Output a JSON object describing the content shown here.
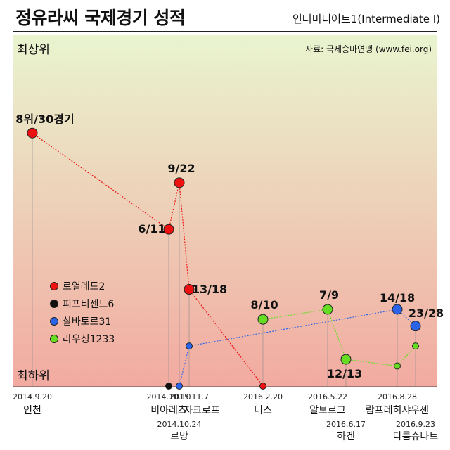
{
  "header": {
    "title": "정유라씨 국제경기 성적",
    "subtitle": "인터미디어트1(Intermediate I)"
  },
  "chart_data": {
    "type": "scatter",
    "source": "자료: 국제승마연맹 (www.fei.org)",
    "axis_top_label": "최상위",
    "axis_bottom_label": "최하위",
    "gradient": {
      "top": "#e9f4cf",
      "bottom": "#f2aaa0"
    },
    "legend": [
      {
        "name": "로열레드2",
        "color": "#ee1111"
      },
      {
        "name": "피프티센트6",
        "color": "#111111"
      },
      {
        "name": "살바토르31",
        "color": "#2b64e8"
      },
      {
        "name": "라우싱1233",
        "color": "#66dd22"
      }
    ],
    "events": [
      {
        "date": "2014.9.20",
        "venue": "인천"
      },
      {
        "date": "2014.10.10",
        "venue": "비아레츠"
      },
      {
        "date": "2014.10.24",
        "venue": "르망"
      },
      {
        "date": "2015.11.7",
        "venue": "자크로프"
      },
      {
        "date": "2016.2.20",
        "venue": "니스"
      },
      {
        "date": "2016.5.22",
        "venue": "알보르그"
      },
      {
        "date": "2016.6.17",
        "venue": "하겐"
      },
      {
        "date": "2016.8.28",
        "venue": "람프레히샤우센"
      },
      {
        "date": "2016.9.23",
        "venue": "다름슈타트"
      }
    ],
    "series": [
      {
        "horse": "로열레드2",
        "color": "#ee1111",
        "points": [
          {
            "event": "2014.9.20",
            "rank": 8,
            "entrants": 30,
            "label": "8위/30경기",
            "pct": 0.759
          },
          {
            "event": "2014.10.10",
            "rank": 6,
            "entrants": 11,
            "label": "6/11",
            "pct": 0.47
          },
          {
            "event": "2014.10.24",
            "rank": 9,
            "entrants": 22,
            "label": "9/22",
            "pct": 0.61
          },
          {
            "event": "2015.11.7",
            "rank": 13,
            "entrants": 18,
            "label": "13/18",
            "pct": 0.29
          },
          {
            "event": "2016.2.20",
            "rank": null,
            "entrants": null,
            "label": "",
            "pct": 0.0
          }
        ]
      },
      {
        "horse": "피프티센트6",
        "color": "#111111",
        "points": [
          {
            "event": "2014.10.10",
            "rank": null,
            "entrants": null,
            "label": "",
            "pct": 0.0
          }
        ]
      },
      {
        "horse": "살바토르31",
        "color": "#2b64e8",
        "points": [
          {
            "event": "2014.10.24",
            "rank": null,
            "entrants": null,
            "label": "",
            "pct": 0.0
          },
          {
            "event": "2015.11.7",
            "rank": null,
            "entrants": null,
            "label": "",
            "pct": 0.12
          },
          {
            "event": "2016.8.28",
            "rank": 14,
            "entrants": 18,
            "label": "14/18",
            "pct": 0.23
          },
          {
            "event": "2016.9.23",
            "rank": 23,
            "entrants": 28,
            "label": "23/28",
            "pct": 0.18
          }
        ]
      },
      {
        "horse": "라우싱1233",
        "color": "#66dd22",
        "points": [
          {
            "event": "2016.2.20",
            "rank": 8,
            "entrants": 10,
            "label": "8/10",
            "pct": 0.2
          },
          {
            "event": "2016.5.22",
            "rank": 7,
            "entrants": 9,
            "label": "7/9",
            "pct": 0.23
          },
          {
            "event": "2016.6.17",
            "rank": 12,
            "entrants": 13,
            "label": "12/13",
            "pct": 0.08
          },
          {
            "event": "2016.8.28",
            "rank": null,
            "entrants": null,
            "label": "",
            "pct": 0.06
          },
          {
            "event": "2016.9.23",
            "rank": null,
            "entrants": null,
            "label": "",
            "pct": 0.12
          }
        ]
      }
    ]
  }
}
